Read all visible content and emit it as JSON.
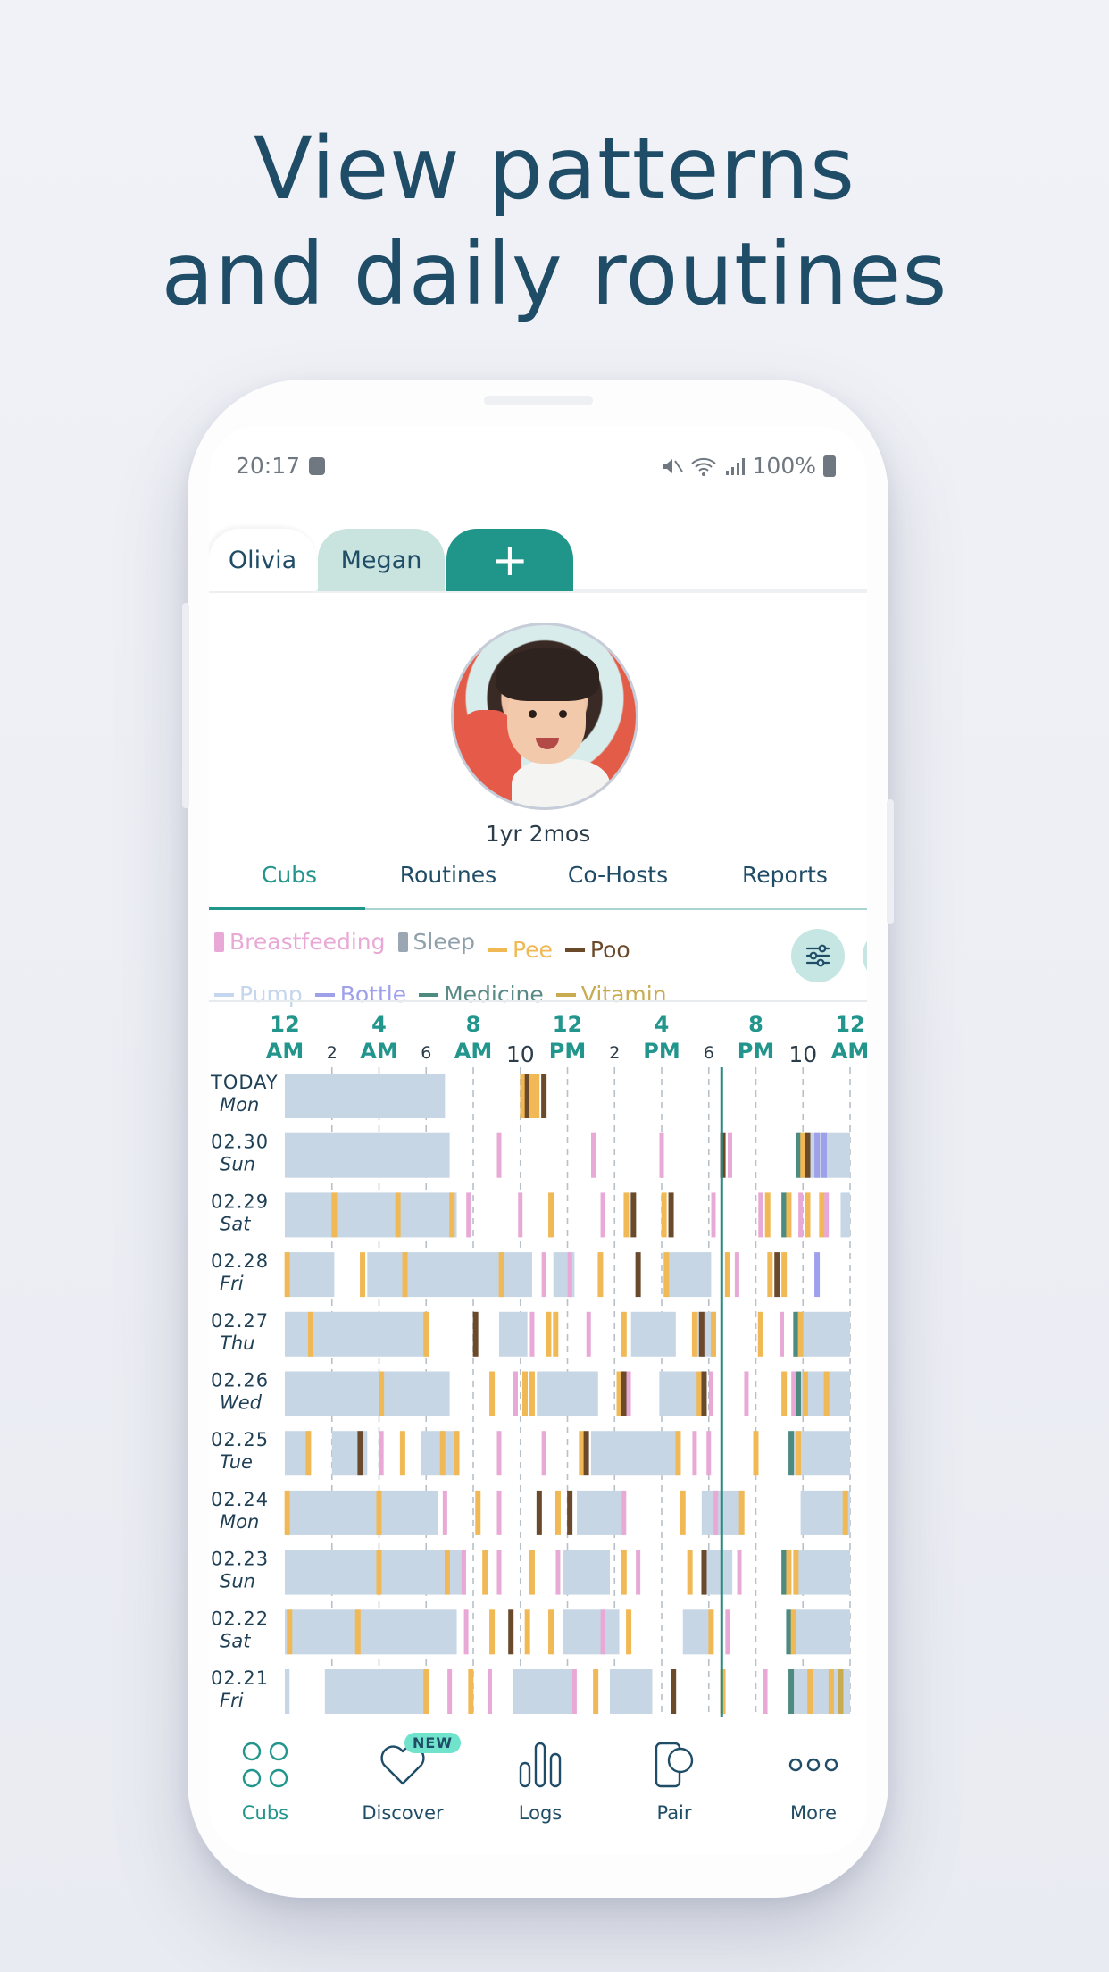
{
  "headline": {
    "line1": "View patterns",
    "line2": "and daily routines"
  },
  "status_bar": {
    "time": "20:17",
    "battery": "100%"
  },
  "profile_tabs": {
    "active": "Olivia",
    "other": "Megan",
    "add": "+"
  },
  "profile": {
    "age": "1yr 2mos"
  },
  "nav_tabs": [
    "Cubs",
    "Routines",
    "Co-Hosts",
    "Reports"
  ],
  "legend": [
    {
      "label": "Breastfeeding",
      "color": "#e8a9d6",
      "shape": "box"
    },
    {
      "label": "Sleep",
      "color": "#9aa6b1",
      "shape": "box"
    },
    {
      "label": "Pee",
      "color": "#f0b955",
      "shape": "dash"
    },
    {
      "label": "Poo",
      "color": "#6b4a2b",
      "shape": "dash"
    },
    {
      "label": "Pump",
      "color": "#c5d6ef",
      "shape": "dash"
    },
    {
      "label": "Bottle",
      "color": "#9ea0ec",
      "shape": "dash"
    },
    {
      "label": "Medicine",
      "color": "#4d8a80",
      "shape": "dash"
    },
    {
      "label": "Vitamin",
      "color": "#c9ac52",
      "shape": "dash"
    }
  ],
  "colors": {
    "accent": "#22968c",
    "sleep_fill": "#c7d6e4",
    "breastfeeding": "#e8a9d6",
    "pee": "#f0b955",
    "poo": "#6b4a2b",
    "bottle": "#9ea0ec",
    "medicine": "#4d8a80",
    "vitamin": "#c9ac52",
    "text_dark": "#1f4c66"
  },
  "time_axis": [
    {
      "hour": 0,
      "top": "12",
      "bottom": "AM",
      "kind": "major"
    },
    {
      "hour": 2,
      "top": "",
      "bottom": "2",
      "kind": "minor"
    },
    {
      "hour": 4,
      "top": "4",
      "bottom": "AM",
      "kind": "major"
    },
    {
      "hour": 6,
      "top": "",
      "bottom": "6",
      "kind": "minor"
    },
    {
      "hour": 8,
      "top": "8",
      "bottom": "AM",
      "kind": "major"
    },
    {
      "hour": 10,
      "top": "",
      "bottom": "10",
      "kind": "ten"
    },
    {
      "hour": 12,
      "top": "12",
      "bottom": "PM",
      "kind": "major"
    },
    {
      "hour": 14,
      "top": "",
      "bottom": "2",
      "kind": "minor"
    },
    {
      "hour": 16,
      "top": "4",
      "bottom": "PM",
      "kind": "major"
    },
    {
      "hour": 18,
      "top": "",
      "bottom": "6",
      "kind": "minor"
    },
    {
      "hour": 20,
      "top": "8",
      "bottom": "PM",
      "kind": "major"
    },
    {
      "hour": 22,
      "top": "",
      "bottom": "10",
      "kind": "ten"
    },
    {
      "hour": 24,
      "top": "12",
      "bottom": "AM",
      "kind": "major"
    }
  ],
  "current_time_hours": 18.55,
  "days": [
    {
      "date": "TODAY",
      "dow": "Mon",
      "sleep": [
        [
          0,
          6.8
        ]
      ],
      "events": [
        [
          10.1,
          "pee"
        ],
        [
          10.3,
          "poo"
        ],
        [
          10.5,
          "pee"
        ],
        [
          10.7,
          "pee"
        ],
        [
          11.0,
          "poo"
        ]
      ]
    },
    {
      "date": "02.30",
      "dow": "Sun",
      "sleep": [
        [
          0,
          7.0
        ],
        [
          21.8,
          24
        ]
      ],
      "events": [
        [
          9.1,
          "breastfeeding"
        ],
        [
          13.1,
          "breastfeeding"
        ],
        [
          16.0,
          "breastfeeding"
        ],
        [
          18.6,
          "poo"
        ],
        [
          18.9,
          "breastfeeding"
        ],
        [
          21.8,
          "medicine"
        ],
        [
          22.0,
          "pee"
        ],
        [
          22.2,
          "poo"
        ],
        [
          22.6,
          "bottle"
        ],
        [
          22.9,
          "bottle"
        ]
      ]
    },
    {
      "date": "02.29",
      "dow": "Sat",
      "sleep": [
        [
          0,
          7.3
        ],
        [
          23.6,
          24
        ]
      ],
      "events": [
        [
          2.1,
          "pee"
        ],
        [
          4.8,
          "pee"
        ],
        [
          7.1,
          "pee"
        ],
        [
          7.8,
          "breastfeeding"
        ],
        [
          10.0,
          "breastfeeding"
        ],
        [
          11.3,
          "pee"
        ],
        [
          13.5,
          "breastfeeding"
        ],
        [
          14.5,
          "pee"
        ],
        [
          14.8,
          "poo"
        ],
        [
          16.1,
          "pee"
        ],
        [
          16.4,
          "poo"
        ],
        [
          18.2,
          "breastfeeding"
        ],
        [
          20.2,
          "breastfeeding"
        ],
        [
          20.5,
          "pee"
        ],
        [
          21.2,
          "medicine"
        ],
        [
          21.4,
          "pee"
        ],
        [
          21.9,
          "breastfeeding"
        ],
        [
          22.2,
          "pee"
        ],
        [
          22.8,
          "pee"
        ],
        [
          23.0,
          "breastfeeding"
        ]
      ]
    },
    {
      "date": "02.28",
      "dow": "Fri",
      "sleep": [
        [
          0.1,
          2.1
        ],
        [
          3.5,
          10.5
        ],
        [
          11.4,
          12.3
        ],
        [
          16.3,
          18.1
        ]
      ],
      "events": [
        [
          0.1,
          "pee"
        ],
        [
          3.3,
          "pee"
        ],
        [
          5.1,
          "pee"
        ],
        [
          9.2,
          "pee"
        ],
        [
          11.0,
          "breastfeeding"
        ],
        [
          12.1,
          "breastfeeding"
        ],
        [
          13.4,
          "pee"
        ],
        [
          15.0,
          "poo"
        ],
        [
          16.2,
          "pee"
        ],
        [
          18.8,
          "pee"
        ],
        [
          19.2,
          "breastfeeding"
        ],
        [
          20.6,
          "pee"
        ],
        [
          20.9,
          "poo"
        ],
        [
          21.2,
          "pee"
        ],
        [
          22.6,
          "bottle"
        ]
      ]
    },
    {
      "date": "02.27",
      "dow": "Thu",
      "sleep": [
        [
          0,
          6.1
        ],
        [
          9.1,
          10.3
        ],
        [
          14.7,
          16.6
        ],
        [
          17.5,
          18.3
        ],
        [
          21.7,
          24
        ]
      ],
      "events": [
        [
          1.1,
          "pee"
        ],
        [
          6.0,
          "pee"
        ],
        [
          8.1,
          "poo"
        ],
        [
          10.5,
          "breastfeeding"
        ],
        [
          11.2,
          "pee"
        ],
        [
          11.5,
          "pee"
        ],
        [
          12.9,
          "breastfeeding"
        ],
        [
          14.4,
          "pee"
        ],
        [
          17.4,
          "pee"
        ],
        [
          17.7,
          "poo"
        ],
        [
          18.2,
          "pee"
        ],
        [
          20.2,
          "pee"
        ],
        [
          21.1,
          "breastfeeding"
        ],
        [
          21.7,
          "medicine"
        ],
        [
          21.9,
          "pee"
        ]
      ]
    },
    {
      "date": "02.26",
      "dow": "Wed",
      "sleep": [
        [
          0,
          7.0
        ],
        [
          10.7,
          13.3
        ],
        [
          15.9,
          17.6
        ],
        [
          21.8,
          24
        ]
      ],
      "events": [
        [
          4.1,
          "pee"
        ],
        [
          8.8,
          "pee"
        ],
        [
          9.8,
          "breastfeeding"
        ],
        [
          10.2,
          "pee"
        ],
        [
          10.5,
          "pee"
        ],
        [
          14.2,
          "pee"
        ],
        [
          14.4,
          "poo"
        ],
        [
          14.6,
          "breastfeeding"
        ],
        [
          17.6,
          "pee"
        ],
        [
          17.8,
          "poo"
        ],
        [
          18.1,
          "breastfeeding"
        ],
        [
          19.6,
          "breastfeeding"
        ],
        [
          21.2,
          "pee"
        ],
        [
          21.6,
          "breastfeeding"
        ],
        [
          21.8,
          "medicine"
        ],
        [
          22.1,
          "pee"
        ],
        [
          23.0,
          "pee"
        ]
      ]
    },
    {
      "date": "02.25",
      "dow": "Tue",
      "sleep": [
        [
          0,
          1.1
        ],
        [
          2.0,
          3.5
        ],
        [
          5.8,
          7.4
        ],
        [
          13.0,
          16.8
        ],
        [
          21.5,
          24
        ]
      ],
      "events": [
        [
          1.0,
          "pee"
        ],
        [
          3.2,
          "poo"
        ],
        [
          4.1,
          "breastfeeding"
        ],
        [
          5.0,
          "pee"
        ],
        [
          6.7,
          "pee"
        ],
        [
          7.3,
          "pee"
        ],
        [
          9.1,
          "breastfeeding"
        ],
        [
          11.0,
          "breastfeeding"
        ],
        [
          12.6,
          "pee"
        ],
        [
          12.8,
          "poo"
        ],
        [
          16.7,
          "pee"
        ],
        [
          17.4,
          "breastfeeding"
        ],
        [
          18.0,
          "breastfeeding"
        ],
        [
          20.0,
          "pee"
        ],
        [
          21.5,
          "medicine"
        ],
        [
          21.8,
          "pee"
        ]
      ]
    },
    {
      "date": "02.24",
      "dow": "Mon",
      "sleep": [
        [
          0,
          6.5
        ],
        [
          12.4,
          14.4
        ],
        [
          17.7,
          19.3
        ],
        [
          21.9,
          24
        ]
      ],
      "events": [
        [
          0.1,
          "pee"
        ],
        [
          4.0,
          "pee"
        ],
        [
          6.8,
          "breastfeeding"
        ],
        [
          8.2,
          "pee"
        ],
        [
          9.1,
          "breastfeeding"
        ],
        [
          10.8,
          "poo"
        ],
        [
          11.6,
          "pee"
        ],
        [
          12.1,
          "poo"
        ],
        [
          14.4,
          "breastfeeding"
        ],
        [
          16.9,
          "pee"
        ],
        [
          18.3,
          "breastfeeding"
        ],
        [
          19.4,
          "pee"
        ],
        [
          23.8,
          "pee"
        ]
      ]
    },
    {
      "date": "02.23",
      "dow": "Sun",
      "sleep": [
        [
          0,
          7.6
        ],
        [
          11.8,
          13.8
        ],
        [
          17.8,
          19.0
        ],
        [
          21.6,
          24
        ]
      ],
      "events": [
        [
          4.0,
          "pee"
        ],
        [
          6.9,
          "pee"
        ],
        [
          7.6,
          "breastfeeding"
        ],
        [
          8.5,
          "pee"
        ],
        [
          9.1,
          "breastfeeding"
        ],
        [
          10.5,
          "pee"
        ],
        [
          11.6,
          "breastfeeding"
        ],
        [
          14.4,
          "pee"
        ],
        [
          15.0,
          "breastfeeding"
        ],
        [
          17.2,
          "pee"
        ],
        [
          17.8,
          "poo"
        ],
        [
          19.3,
          "breastfeeding"
        ],
        [
          21.2,
          "medicine"
        ],
        [
          21.4,
          "pee"
        ],
        [
          21.7,
          "pee"
        ]
      ]
    },
    {
      "date": "02.22",
      "dow": "Sat",
      "sleep": [
        [
          0,
          7.3
        ],
        [
          11.8,
          14.2
        ],
        [
          16.9,
          18.2
        ],
        [
          21.6,
          24
        ]
      ],
      "events": [
        [
          0.2,
          "pee"
        ],
        [
          3.1,
          "pee"
        ],
        [
          7.7,
          "breastfeeding"
        ],
        [
          8.8,
          "pee"
        ],
        [
          9.6,
          "poo"
        ],
        [
          10.3,
          "pee"
        ],
        [
          11.3,
          "pee"
        ],
        [
          13.5,
          "breastfeeding"
        ],
        [
          14.6,
          "pee"
        ],
        [
          18.1,
          "pee"
        ],
        [
          18.8,
          "breastfeeding"
        ],
        [
          21.4,
          "medicine"
        ],
        [
          21.6,
          "pee"
        ]
      ]
    },
    {
      "date": "02.21",
      "dow": "Fri",
      "sleep": [
        [
          0,
          0.2
        ],
        [
          1.7,
          6.1
        ],
        [
          9.7,
          12.3
        ],
        [
          13.8,
          15.6
        ],
        [
          21.5,
          24
        ]
      ],
      "events": [
        [
          6.0,
          "pee"
        ],
        [
          7.0,
          "breastfeeding"
        ],
        [
          7.9,
          "pee"
        ],
        [
          8.7,
          "breastfeeding"
        ],
        [
          12.3,
          "breastfeeding"
        ],
        [
          13.2,
          "pee"
        ],
        [
          16.5,
          "poo"
        ],
        [
          18.6,
          "pee"
        ],
        [
          20.4,
          "breastfeeding"
        ],
        [
          21.5,
          "medicine"
        ],
        [
          22.3,
          "pee"
        ],
        [
          23.2,
          "pee"
        ],
        [
          23.6,
          "vitamin"
        ]
      ]
    }
  ],
  "bottom_nav": [
    {
      "label": "Cubs",
      "icon": "cubs-icon",
      "active": true
    },
    {
      "label": "Discover",
      "icon": "heart-icon",
      "badge": "NEW"
    },
    {
      "label": "Logs",
      "icon": "bars-icon"
    },
    {
      "label": "Pair",
      "icon": "pair-icon"
    },
    {
      "label": "More",
      "icon": "more-icon"
    }
  ]
}
